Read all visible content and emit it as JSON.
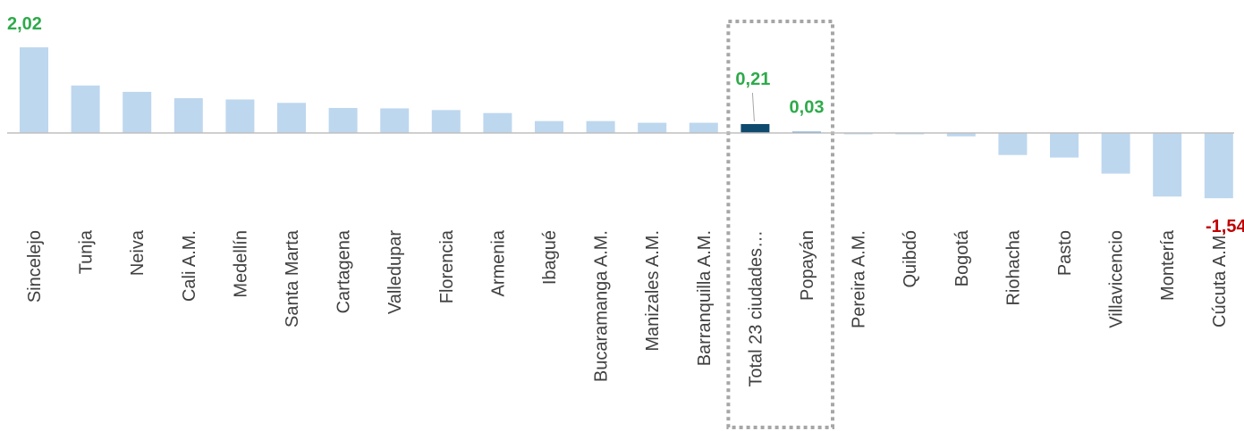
{
  "chart_data": {
    "type": "bar",
    "categories": [
      "Sincelejo",
      "Tunja",
      "Neiva",
      "Cali A.M.",
      "Medellín",
      "Santa Marta",
      "Cartagena",
      "Valledupar",
      "Florencia",
      "Armenia",
      "Ibagué",
      "Bucaramanga A.M.",
      "Manizales A.M.",
      "Barranquilla A.M.",
      "Total 23 ciudades…",
      "Popayán",
      "Pereira A.M.",
      "Quibdó",
      "Bogotá",
      "Riohacha",
      "Pasto",
      "Villavicencio",
      "Montería",
      "Cúcuta A.M."
    ],
    "values": [
      2.02,
      1.12,
      0.97,
      0.82,
      0.79,
      0.71,
      0.59,
      0.58,
      0.54,
      0.47,
      0.28,
      0.28,
      0.24,
      0.24,
      0.21,
      0.03,
      -0.02,
      -0.03,
      -0.08,
      -0.52,
      -0.58,
      -0.96,
      -1.5,
      -1.54
    ],
    "data_labels": [
      {
        "category": "Sincelejo",
        "text": "2,02"
      },
      {
        "category": "Total 23 ciudades…",
        "text": "0,21"
      },
      {
        "category": "Popayán",
        "text": "0,03"
      },
      {
        "category": "Cúcuta A.M.",
        "text": "-1,54"
      }
    ],
    "highlighted_category": "Total 23 ciudades…",
    "ylim": [
      -1.54,
      2.02
    ],
    "colors": {
      "bar": "#BDD7EE",
      "highlight_bar": "#0E4A6E",
      "popayan_bar": "#5B9BD5",
      "positive_label": "#2EAA4A",
      "negative_label": "#C00000",
      "axis": "#BFBFBF",
      "dashed_box": "#A6A6A6"
    },
    "title": "",
    "xlabel": "",
    "ylabel": "",
    "grid": false,
    "legend": "none"
  }
}
